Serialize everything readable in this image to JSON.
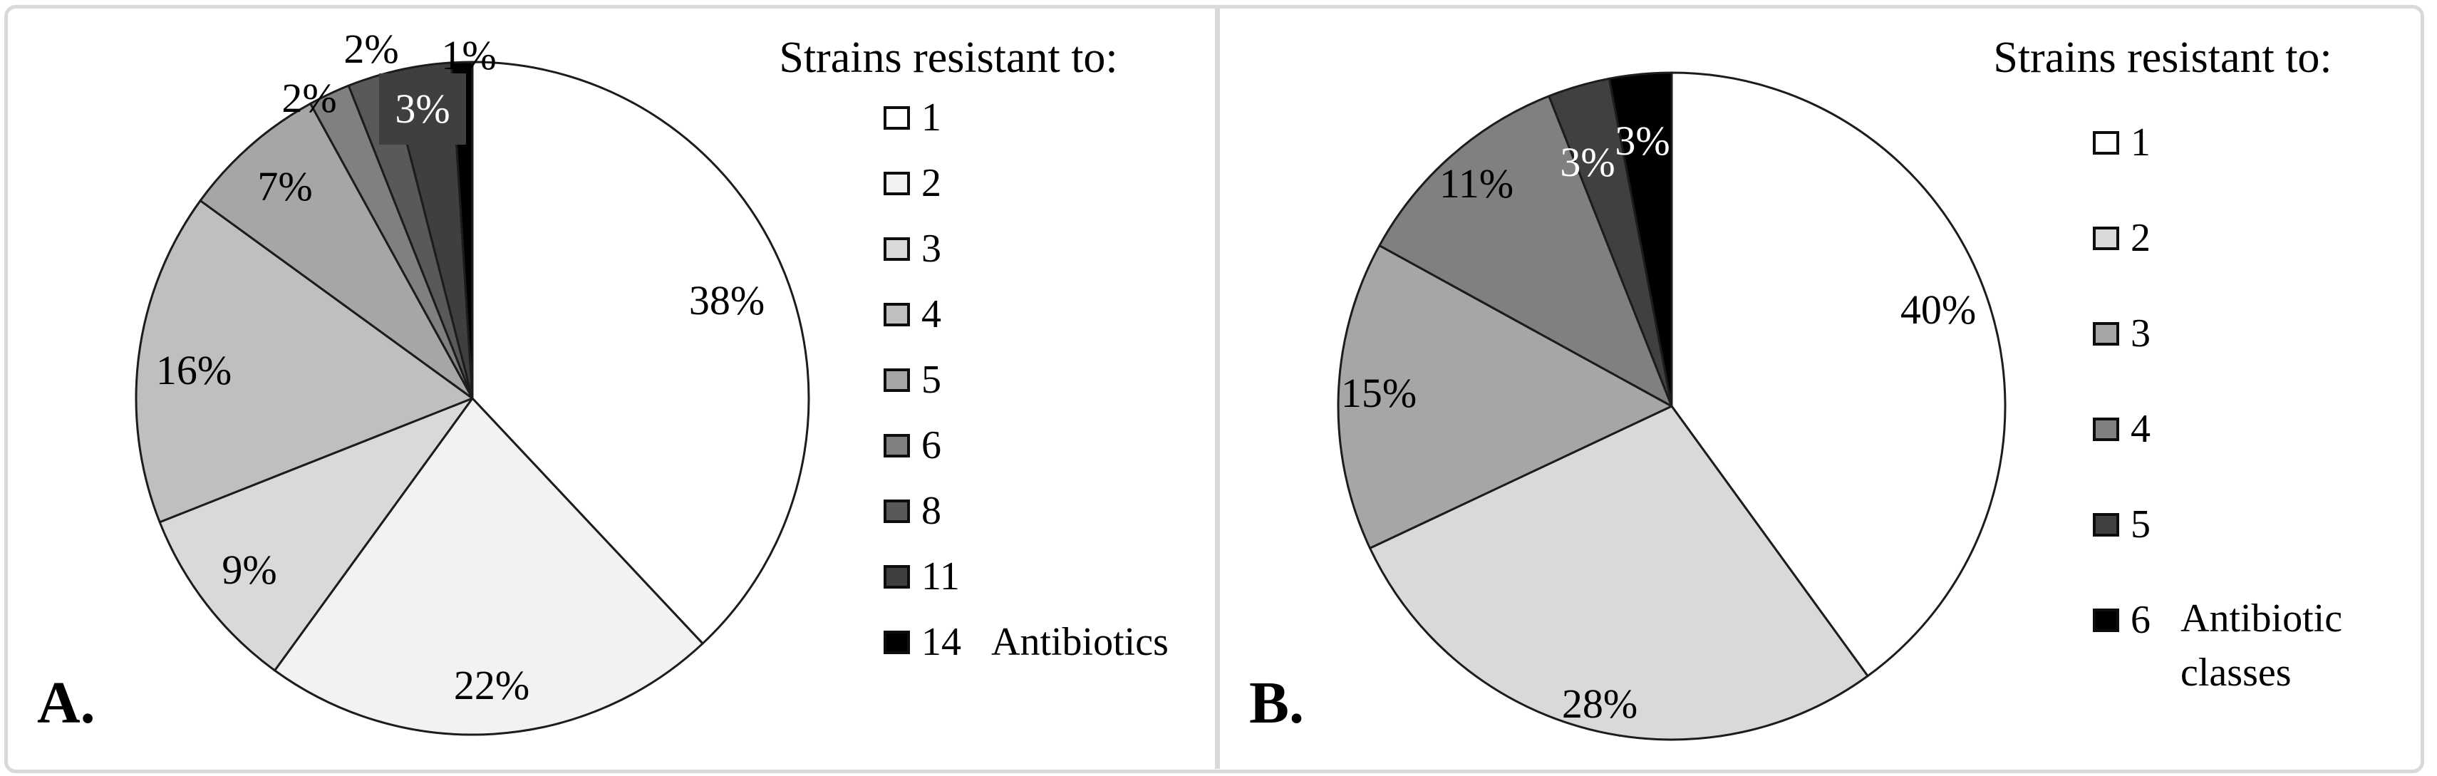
{
  "frame": {
    "border_color": "#d9d9d9",
    "background": "#ffffff"
  },
  "chart_data": [
    {
      "type": "pie",
      "panel_letter": "A.",
      "legend_title": "Strains resistant to:",
      "legend_position": "right",
      "start_angle_deg": 0,
      "direction": "clockwise",
      "categories": [
        "1",
        "2",
        "3",
        "4",
        "5",
        "6",
        "8",
        "11",
        "14"
      ],
      "values": [
        38,
        22,
        9,
        16,
        7,
        2,
        2,
        3,
        1
      ],
      "labels": [
        "38%",
        "22%",
        "9%",
        "16%",
        "7%",
        "2%",
        "2%",
        "3%",
        "1%"
      ],
      "colors": [
        "#ffffff",
        "#f2f2f2",
        "#d9d9d9",
        "#bfbfbf",
        "#a6a6a6",
        "#808080",
        "#595959",
        "#3f3f3f",
        "#000000"
      ],
      "suffix_lines": [
        "Antibiotics"
      ]
    },
    {
      "type": "pie",
      "panel_letter": "B.",
      "legend_title": "Strains resistant to:",
      "legend_position": "right",
      "start_angle_deg": 0,
      "direction": "clockwise",
      "categories": [
        "1",
        "2",
        "3",
        "4",
        "5",
        "6"
      ],
      "values": [
        40,
        28,
        15,
        11,
        3,
        3
      ],
      "labels": [
        "40%",
        "28%",
        "15%",
        "11%",
        "3%",
        "3%"
      ],
      "colors": [
        "#ffffff",
        "#d9d9d9",
        "#a6a6a6",
        "#808080",
        "#404040",
        "#000000"
      ],
      "suffix_lines": [
        "Antibiotic",
        "classes"
      ]
    }
  ]
}
